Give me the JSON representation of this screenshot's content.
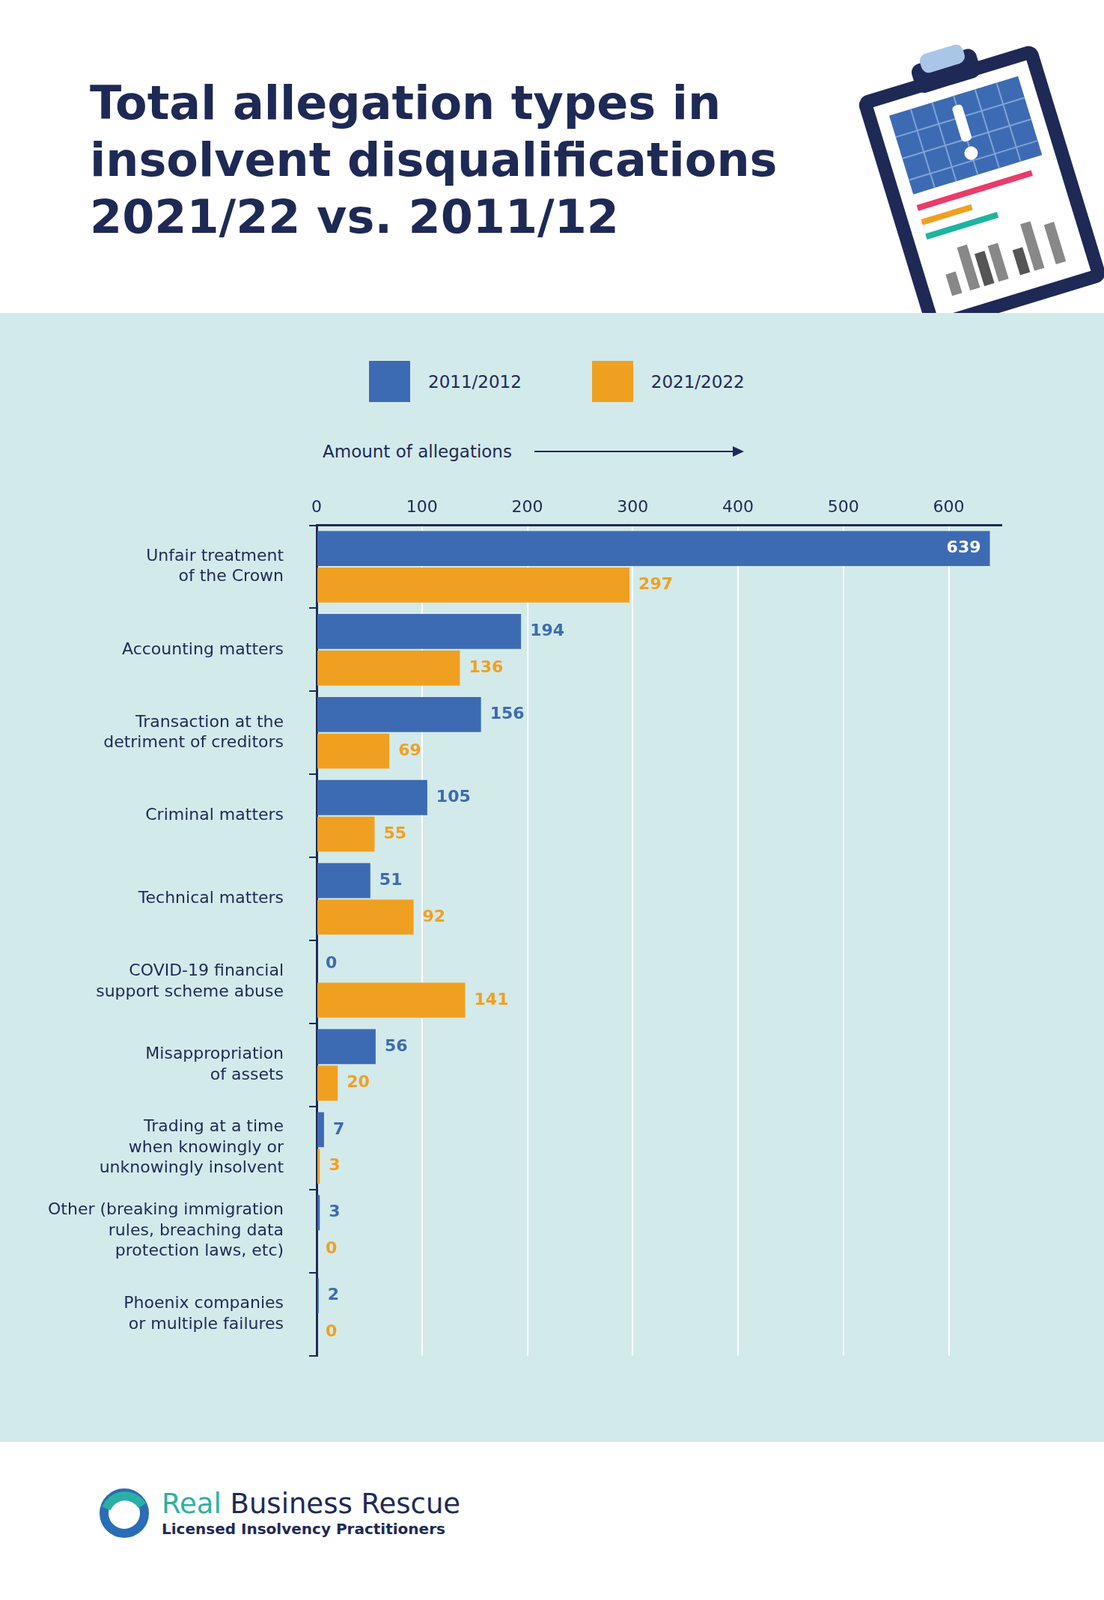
{
  "chart_data": {
    "type": "bar",
    "orientation": "horizontal",
    "title": "Total allegation types in\ninsolvent disqualifications\n2021/22 vs. 2011/12",
    "x_label": "Amount of allegations",
    "categories": [
      [
        "Unfair treatment",
        "of the Crown"
      ],
      [
        "Accounting matters"
      ],
      [
        "Transaction at the",
        "detriment of creditors"
      ],
      [
        "Criminal matters"
      ],
      [
        "Technical matters"
      ],
      [
        "COVID-19 financial",
        "support scheme abuse"
      ],
      [
        "Misappropriation",
        "of assets"
      ],
      [
        "Trading at a time",
        "when knowingly or",
        "unknowingly insolvent"
      ],
      [
        "Other (breaking immigration",
        "rules, breaching data",
        "protection laws, etc)"
      ],
      [
        "Phoenix companies",
        "or multiple failures"
      ]
    ],
    "series": [
      {
        "name": "2011/2012",
        "color": "#3d6bb3",
        "values": [
          639,
          194,
          156,
          105,
          51,
          0,
          56,
          7,
          3,
          2
        ]
      },
      {
        "name": "2021/2022",
        "color": "#f0a020",
        "values": [
          297,
          136,
          69,
          55,
          92,
          141,
          20,
          3,
          0,
          0
        ]
      }
    ],
    "xlim": [
      0,
      650
    ],
    "xticks": [
      0,
      100,
      200,
      300,
      400,
      500,
      600
    ],
    "grid": true,
    "legend": "top",
    "data_labels": true
  },
  "footer": {
    "brand": [
      "Real",
      "Business Rescue"
    ],
    "tagline": "Licensed Insolvency Practitioners"
  }
}
